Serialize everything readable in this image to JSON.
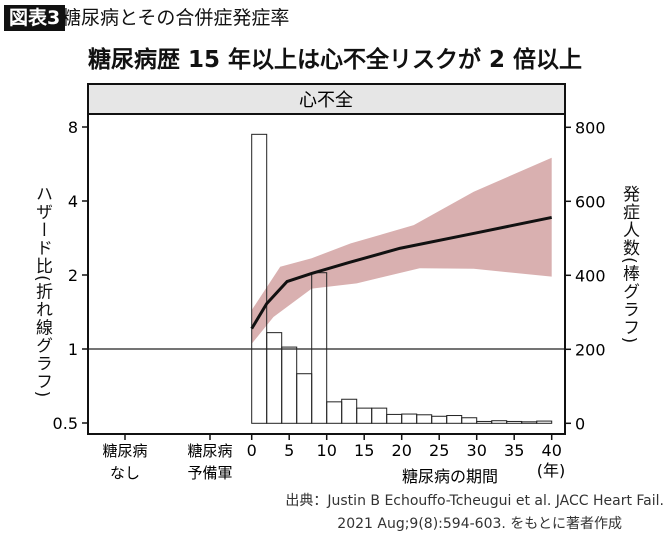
{
  "header": {
    "badge": "図表3",
    "subtitle": "糖尿病とその合併症発症率"
  },
  "chart_data": {
    "type": "bar+line",
    "title": "糖尿病歴 15 年以上は心不全リスクが 2 倍以上",
    "panel_title": "心不全",
    "ylabel_left": "ハザード比(折れ線グラフ)",
    "ylabel_right": "発症人数(棒グラフ)",
    "xlabel": "糖尿病の期間",
    "x_unit": "(年)",
    "categorical_ticks": [
      "糖尿病\nなし",
      "糖尿病\n予備軍"
    ],
    "categorical_ticks_lines": [
      [
        "糖尿病",
        "なし"
      ],
      [
        "糖尿病",
        "予備軍"
      ]
    ],
    "x_ticks": [
      0,
      5,
      10,
      15,
      20,
      25,
      30,
      35,
      40
    ],
    "xlim": [
      0,
      40
    ],
    "y_left_scale": "log2",
    "y_left_ticks": [
      0.5,
      1,
      2,
      4,
      8
    ],
    "y_left_lim": [
      0.5,
      8
    ],
    "y_right_ticks": [
      0,
      200,
      400,
      600,
      800
    ],
    "y_right_lim": [
      0,
      800
    ],
    "reference_line_hr": 1,
    "bars": {
      "bin_width_years": 2,
      "bin_starts": [
        0,
        2,
        4,
        6,
        8,
        10,
        12,
        14,
        16,
        18,
        20,
        22,
        24,
        26,
        28,
        30,
        32,
        34,
        36,
        38
      ],
      "values": [
        781,
        245,
        206,
        134,
        407,
        58,
        65,
        41,
        41,
        24,
        25,
        23,
        19,
        21,
        15,
        5,
        7,
        5,
        4,
        6
      ]
    },
    "hr_line": {
      "x": [
        0,
        2,
        4.7,
        8,
        13,
        19.8,
        30,
        40
      ],
      "y": [
        1.21,
        1.53,
        1.88,
        2.03,
        2.25,
        2.57,
        2.97,
        3.43
      ]
    },
    "ci_upper": {
      "x": [
        0,
        3.8,
        8,
        13.2,
        21.6,
        29.6,
        40
      ],
      "y": [
        1.44,
        2.16,
        2.34,
        2.69,
        3.19,
        4.36,
        6.0
      ]
    },
    "ci_lower": {
      "x": [
        0,
        2.9,
        8,
        14,
        22.4,
        29.6,
        40
      ],
      "y": [
        1.05,
        1.35,
        1.76,
        1.85,
        2.13,
        2.12,
        1.97
      ]
    },
    "colors": {
      "ci_band": "#d9b0b0",
      "line": "#111111",
      "bars_fill": "#ffffff",
      "panel_header": "#e6e6e6"
    }
  },
  "source": {
    "line1": "出典：Justin B Echouffo-Tcheugui et al. JACC Heart Fail.",
    "line2": "2021 Aug;9(8):594-603. をもとに著者作成"
  }
}
